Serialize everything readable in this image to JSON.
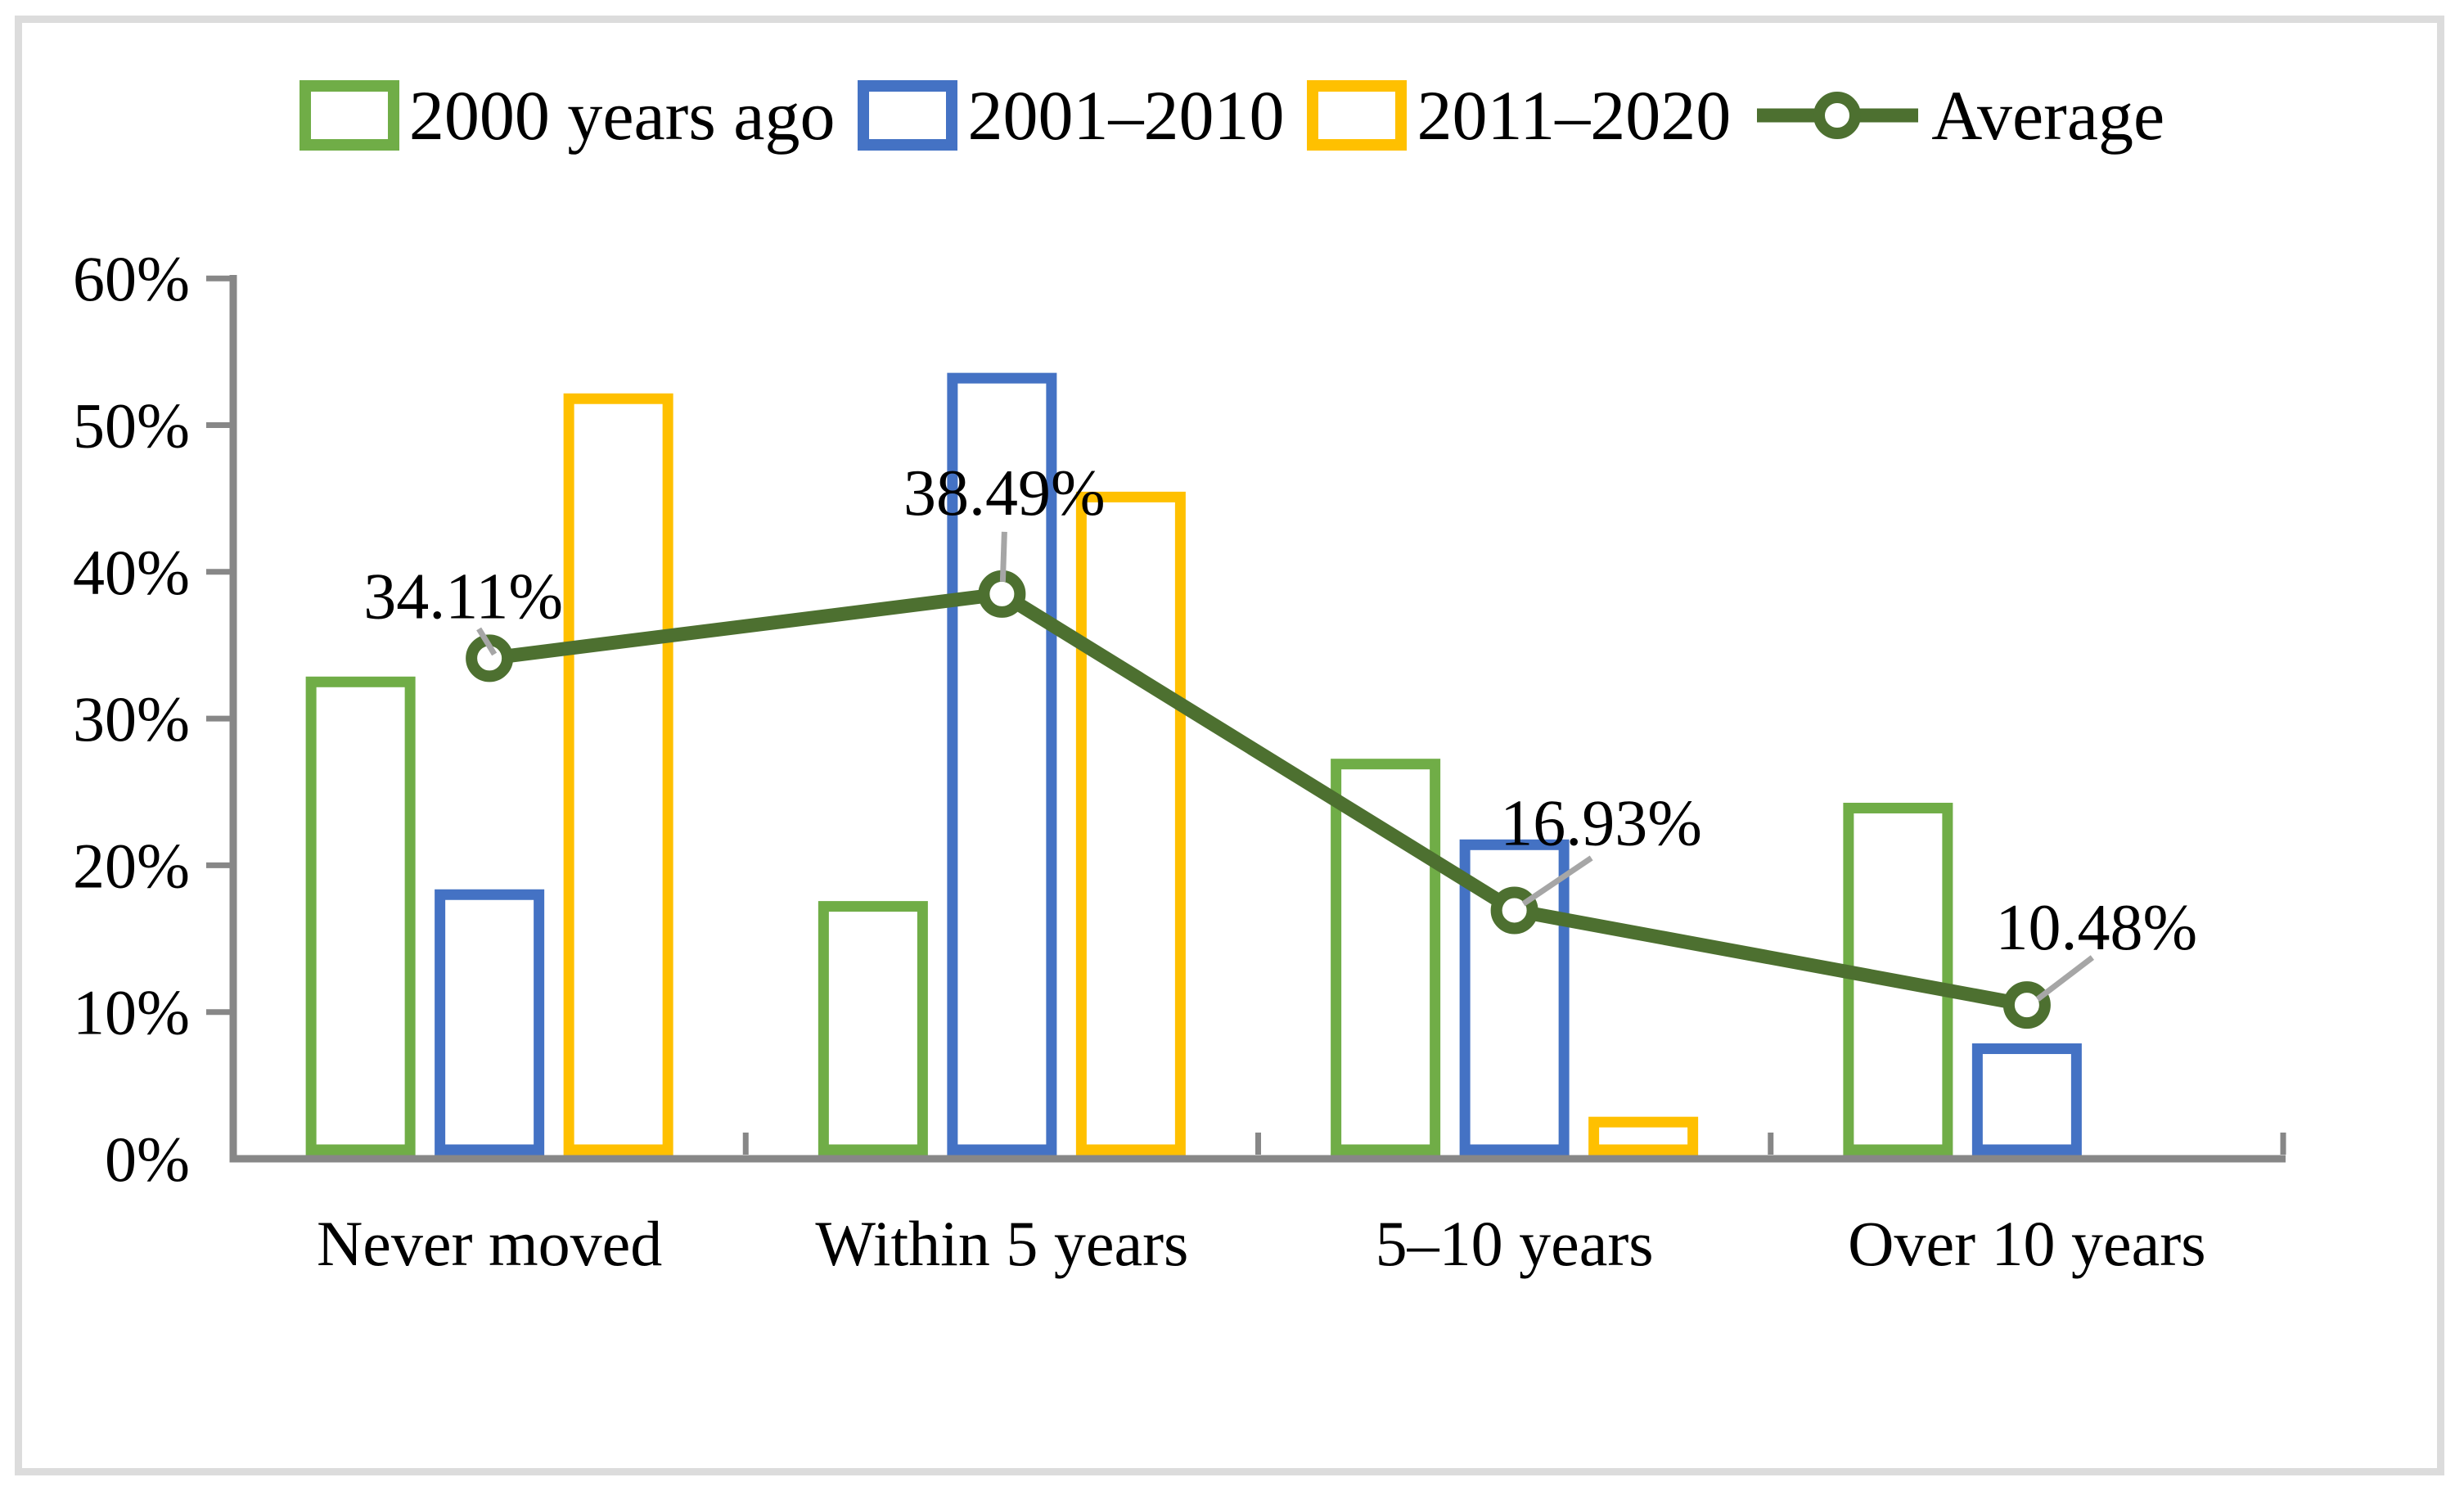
{
  "chart_data": {
    "type": "bar",
    "overlay": "line",
    "title": "",
    "categories": [
      "Never moved",
      "Within 5 years",
      "5–10 years",
      "Over 10 years"
    ],
    "series": [
      {
        "name": "2000 years ago",
        "color": "#70AD47",
        "values": [
          32.5,
          17.2,
          26.9,
          23.9
        ]
      },
      {
        "name": "2001–2010",
        "color": "#4472C4",
        "values": [
          18.0,
          53.2,
          21.4,
          7.5
        ]
      },
      {
        "name": "2011–2020",
        "color": "#FFC000",
        "values": [
          51.8,
          45.1,
          2.5,
          0
        ]
      }
    ],
    "line_series": {
      "name": "Average",
      "color": "#4D7030",
      "values": [
        34.11,
        38.49,
        16.93,
        10.48
      ],
      "labels": [
        "34.11%",
        "38.49%",
        "16.93%",
        "10.48%"
      ]
    },
    "y_axis": {
      "tick_labels": [
        "0%",
        "10%",
        "20%",
        "30%",
        "40%",
        "50%",
        "60%"
      ],
      "min": 0,
      "max": 60,
      "grid": false
    },
    "bar_fill": "#FFFFFF",
    "axis_color": "#878787",
    "leader_color": "#A6A6A6",
    "frame_color": "#DCDCDC",
    "legend_position": "top"
  }
}
